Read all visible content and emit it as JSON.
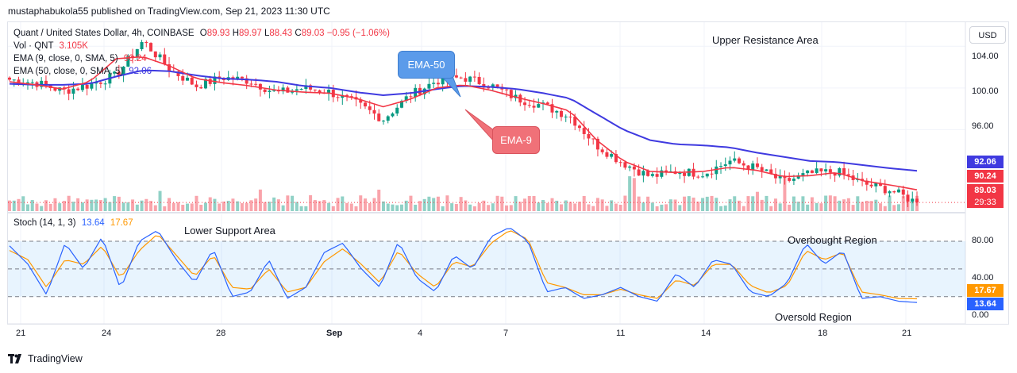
{
  "header": {
    "published_line": "mustaphabukola55 published on TradingView.com, Sep 21, 2023 11:30 UTC"
  },
  "legend": {
    "symbol": "Quant / United States Dollar, 4h, COINBASE",
    "o_label": "O",
    "o_value": "89.93",
    "h_label": "H",
    "h_value": "89.97",
    "l_label": "L",
    "l_value": "88.43",
    "c_label": "C",
    "c_value": "89.03",
    "change": "−0.95 (−1.06%)",
    "vol_label": "Vol · QNT",
    "vol_value": "3.105K",
    "ema9_label": "EMA (9, close, 0, SMA, 5)",
    "ema9_value": "90.24",
    "ema50_label": "EMA (50, close, 0, SMA, 5)",
    "ema50_value": "92.06",
    "stoch_label": "Stoch (14, 1, 3)",
    "stoch_k": "13.64",
    "stoch_d": "17.67"
  },
  "currency_button": "USD",
  "price_axis": {
    "ticks": [
      "104.00",
      "100.00",
      "96.00"
    ],
    "tags": {
      "ema50": "92.06",
      "ema9": "90.24",
      "close": "89.03",
      "countdown": "29:33"
    }
  },
  "stoch_axis": {
    "ticks": [
      "80.00",
      "40.00",
      "0.00"
    ],
    "tags": {
      "d": "17.67",
      "k": "13.64"
    }
  },
  "time_axis": [
    "21",
    "24",
    "28",
    "Sep",
    "4",
    "7",
    "11",
    "14",
    "18",
    "21"
  ],
  "annotations": {
    "upper_resistance": "Upper Resistance Area",
    "lower_support": "Lower Support Area",
    "overbought": "Overbought Region",
    "oversold": "Oversold Region",
    "ema50_callout": "EMA-50",
    "ema9_callout": "EMA-9"
  },
  "footer": {
    "brand": "TradingView"
  },
  "colors": {
    "up": "#089981",
    "down": "#f23645",
    "ema9": "#f23645",
    "ema50": "#3f3ae0",
    "stoch_k": "#2962ff",
    "stoch_d": "#ff9800",
    "callout_ema50": "#5b9bea",
    "callout_ema9": "#f07178"
  },
  "chart_data": {
    "type": "candlestick",
    "title": "Quant / United States Dollar, 4h, COINBASE",
    "price_range": [
      88.2,
      106.3
    ],
    "x_labels": [
      "21",
      "24",
      "28",
      "Sep",
      "4",
      "7",
      "11",
      "14",
      "18",
      "21"
    ],
    "close_path_keypoints": [
      100.8,
      100.5,
      99.7,
      100.3,
      101.2,
      104.5,
      101.8,
      100.2,
      101.0,
      100.7,
      99.5,
      100.0,
      99.6,
      98.5,
      97.0,
      99.3,
      100.7,
      101.0,
      100.3,
      99.0,
      98.3,
      97.3,
      94.5,
      92.8,
      91.5,
      92.0,
      91.8,
      93.0,
      92.3,
      91.0,
      91.8,
      92.0,
      90.8,
      90.2,
      89.03
    ],
    "ema9_keypoints": [
      100.6,
      100.3,
      99.9,
      100.6,
      102.8,
      103.0,
      102.1,
      100.9,
      100.5,
      100.2,
      99.8,
      99.6,
      99.5,
      99.0,
      98.2,
      98.9,
      100.0,
      100.3,
      99.8,
      99.1,
      98.5,
      97.8,
      95.0,
      93.0,
      92.0,
      91.9,
      92.0,
      92.4,
      92.1,
      91.5,
      91.6,
      91.9,
      91.1,
      90.7,
      90.24
    ],
    "ema50_keypoints": [
      100.4,
      100.3,
      100.3,
      100.4,
      101.1,
      101.7,
      101.6,
      101.2,
      100.9,
      100.8,
      100.6,
      100.2,
      100.0,
      99.6,
      99.3,
      99.5,
      99.9,
      100.2,
      100.1,
      99.9,
      99.5,
      99.0,
      97.5,
      96.0,
      95.0,
      94.6,
      94.5,
      94.3,
      93.8,
      93.4,
      93.0,
      92.9,
      92.6,
      92.3,
      92.06
    ],
    "stoch_k_keypoints": [
      75,
      55,
      22,
      78,
      50,
      85,
      28,
      80,
      92,
      60,
      35,
      72,
      20,
      25,
      60,
      18,
      30,
      68,
      78,
      50,
      30,
      80,
      40,
      25,
      65,
      50,
      85,
      95,
      80,
      25,
      30,
      18,
      22,
      30,
      20,
      15,
      45,
      30,
      60,
      55,
      25,
      20,
      35,
      78,
      55,
      70,
      18,
      20,
      15,
      13.64
    ],
    "stoch_d_keypoints": [
      70,
      60,
      30,
      60,
      55,
      75,
      40,
      70,
      88,
      65,
      42,
      65,
      30,
      28,
      50,
      25,
      30,
      58,
      72,
      55,
      35,
      70,
      45,
      30,
      58,
      52,
      78,
      92,
      82,
      35,
      30,
      22,
      22,
      28,
      22,
      18,
      38,
      32,
      55,
      55,
      32,
      24,
      32,
      70,
      60,
      68,
      25,
      22,
      18,
      17.67
    ],
    "stoch_range": [
      0,
      100
    ],
    "stoch_bands": [
      80,
      50,
      20
    ],
    "last": {
      "close": 89.03,
      "ema9": 90.24,
      "ema50": 92.06,
      "stoch_k": 13.64,
      "stoch_d": 17.67
    }
  }
}
